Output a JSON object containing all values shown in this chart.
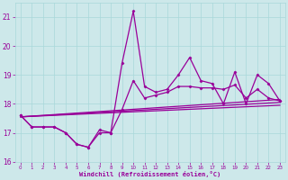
{
  "xlabel": "Windchill (Refroidissement éolien,°C)",
  "x_values": [
    0,
    1,
    2,
    3,
    4,
    5,
    6,
    7,
    8,
    9,
    10,
    11,
    12,
    13,
    14,
    15,
    16,
    17,
    18,
    19,
    20,
    21,
    22,
    23
  ],
  "main_line": [
    17.6,
    17.2,
    17.2,
    17.2,
    17.0,
    16.6,
    16.5,
    17.1,
    17.0,
    19.4,
    21.2,
    18.6,
    18.4,
    18.5,
    19.0,
    19.6,
    18.8,
    18.7,
    18.0,
    19.1,
    18.0,
    19.0,
    18.7,
    18.1
  ],
  "line2": [
    17.6,
    17.2,
    17.2,
    17.2,
    17.0,
    16.6,
    16.5,
    17.0,
    17.0,
    17.8,
    18.8,
    18.2,
    18.3,
    18.4,
    18.6,
    18.6,
    18.55,
    18.55,
    18.5,
    18.65,
    18.2,
    18.5,
    18.2,
    18.1
  ],
  "straight_lines": [
    [
      17.55,
      17.95
    ],
    [
      17.55,
      18.05
    ],
    [
      17.55,
      18.15
    ]
  ],
  "bg_color": "#cde8ea",
  "line_color": "#990099",
  "grid_color": "#a8d8da",
  "ylim": [
    16.0,
    21.5
  ],
  "xlim": [
    -0.5,
    23.5
  ]
}
